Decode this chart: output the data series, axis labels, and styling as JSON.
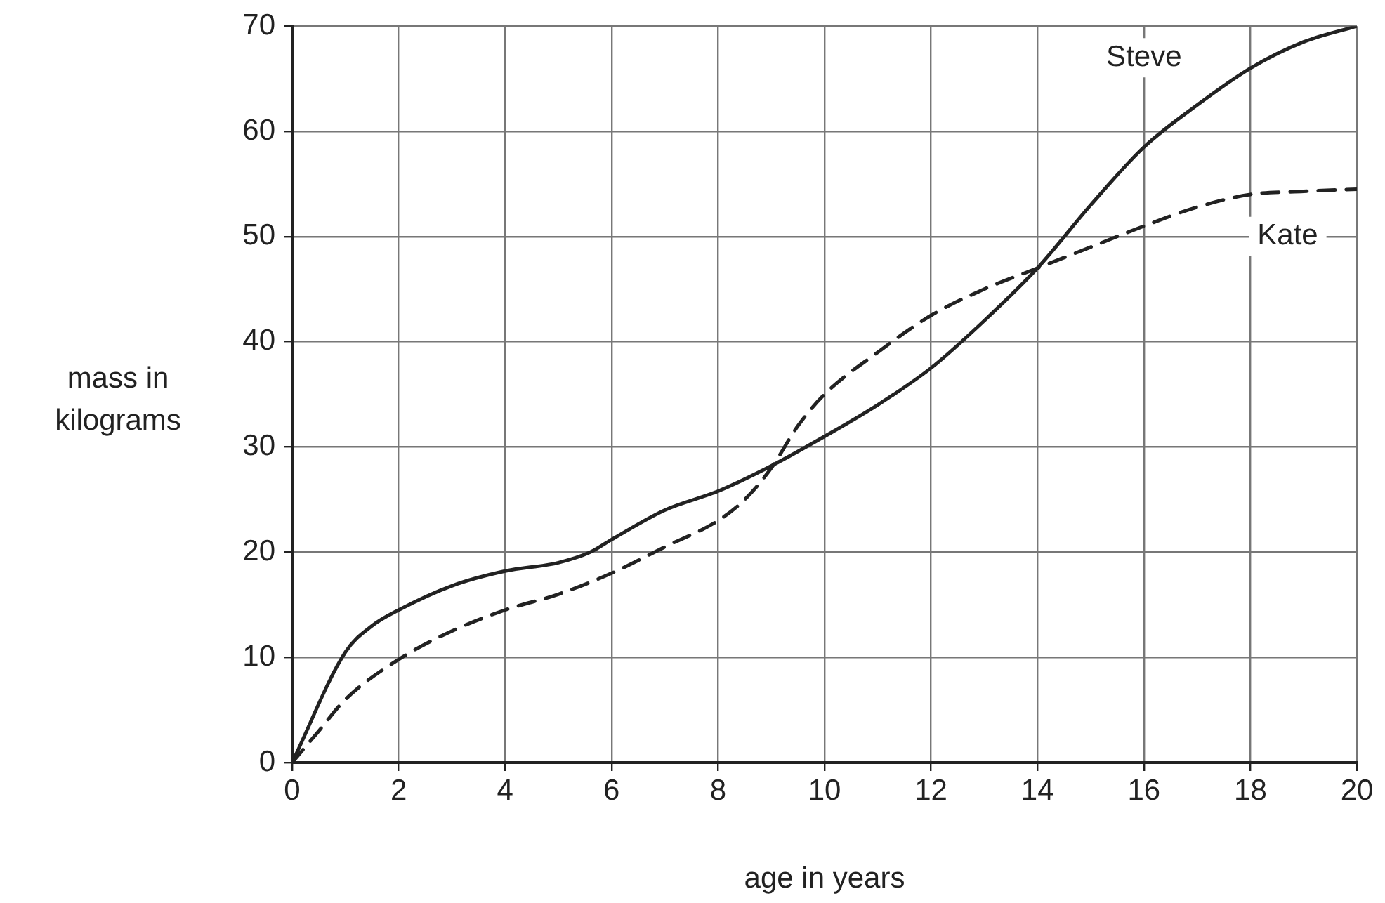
{
  "chart_data": {
    "type": "line",
    "xlabel": "age in years",
    "ylabel": "mass in kilograms",
    "xlim": [
      0,
      20
    ],
    "xticks": [
      0,
      2,
      4,
      6,
      8,
      10,
      12,
      14,
      16,
      18,
      20
    ],
    "ylim": [
      0,
      70
    ],
    "yticks": [
      0,
      10,
      20,
      30,
      40,
      50,
      60,
      70
    ],
    "grid": true,
    "legend": false,
    "marker": "none",
    "series": [
      {
        "name": "Steve",
        "color": "#222222",
        "line_style": "solid",
        "x": [
          0,
          1,
          1.5,
          2,
          3,
          4,
          5,
          5.6,
          6,
          7,
          8,
          9,
          10,
          11,
          12,
          13,
          14,
          15,
          16,
          17,
          18,
          19,
          20
        ],
        "values": [
          0,
          10.5,
          13,
          14.5,
          16.8,
          18.2,
          19,
          20,
          21.2,
          24,
          25.8,
          28.2,
          31,
          34,
          37.5,
          42,
          47,
          53,
          58.5,
          62.5,
          66,
          68.5,
          70
        ]
      },
      {
        "name": "Kate",
        "color": "#222222",
        "line_style": "dashed",
        "x": [
          0,
          0.5,
          1,
          2,
          3,
          4,
          5,
          6,
          7,
          8,
          8.5,
          9,
          9.5,
          10,
          11,
          12,
          13,
          14,
          15,
          16,
          17,
          18,
          19,
          20
        ],
        "values": [
          0,
          3,
          6,
          9.8,
          12.5,
          14.5,
          16,
          18,
          20.5,
          23,
          25,
          28,
          32,
          35,
          39,
          42.5,
          45,
          47,
          49,
          51,
          52.8,
          54,
          54.3,
          54.5
        ]
      }
    ]
  }
}
